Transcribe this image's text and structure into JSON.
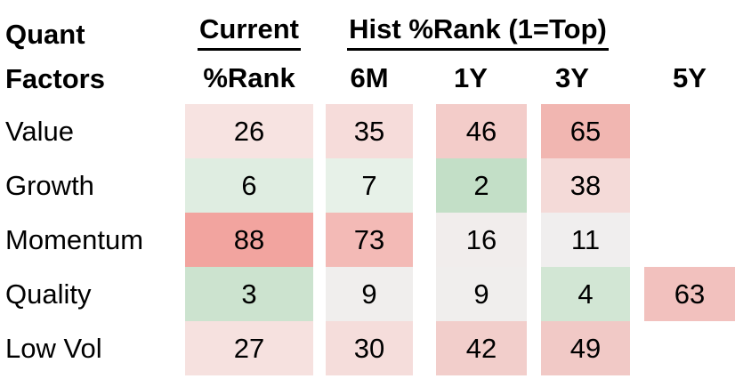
{
  "header": {
    "row_title_line1": "Quant",
    "row_title_line2": "Factors",
    "current_group_label": "Current",
    "hist_group_label": "Hist %Rank (1=Top)",
    "columns": [
      "%Rank",
      "6M",
      "1Y",
      "3Y",
      "5Y"
    ]
  },
  "rows": [
    {
      "label": "Value",
      "cells": [
        {
          "value": "26",
          "bg": "#F7E3E1"
        },
        {
          "value": "35",
          "bg": "#F6DCDA"
        },
        {
          "value": "46",
          "bg": "#F3CCC9"
        },
        {
          "value": "65",
          "bg": "#F1B6B1"
        },
        {
          "value": "",
          "bg": ""
        }
      ]
    },
    {
      "label": "Growth",
      "cells": [
        {
          "value": "6",
          "bg": "#DFEDE1"
        },
        {
          "value": "7",
          "bg": "#E7F1E8"
        },
        {
          "value": "2",
          "bg": "#C3DFC7"
        },
        {
          "value": "38",
          "bg": "#F4DAD8"
        },
        {
          "value": "",
          "bg": ""
        }
      ]
    },
    {
      "label": "Momentum",
      "cells": [
        {
          "value": "88",
          "bg": "#F2A49F"
        },
        {
          "value": "73",
          "bg": "#F3BAB6"
        },
        {
          "value": "16",
          "bg": "#F1EDEC"
        },
        {
          "value": "11",
          "bg": "#F0EEEE"
        },
        {
          "value": "",
          "bg": ""
        }
      ]
    },
    {
      "label": "Quality",
      "cells": [
        {
          "value": "3",
          "bg": "#CCE3CF"
        },
        {
          "value": "9",
          "bg": "#F0EEED"
        },
        {
          "value": "9",
          "bg": "#F0EEED"
        },
        {
          "value": "4",
          "bg": "#D2E6D4"
        },
        {
          "value": "63",
          "bg": "#F2C1BE"
        }
      ]
    },
    {
      "label": "Low Vol",
      "cells": [
        {
          "value": "27",
          "bg": "#F6E1DF"
        },
        {
          "value": "30",
          "bg": "#F5DDDB"
        },
        {
          "value": "42",
          "bg": "#F2CECB"
        },
        {
          "value": "49",
          "bg": "#F1C9C6"
        },
        {
          "value": "",
          "bg": ""
        }
      ]
    }
  ],
  "colors": {
    "good_green": "#C3DFC7",
    "bad_red": "#F2A49F",
    "neutral": "#F0EEEE",
    "text": "#000000",
    "background": "#FFFFFF"
  },
  "chart_data": {
    "type": "heatmap",
    "title": "Quant Factors %Rank (1=Top)",
    "column_groups": [
      {
        "label": "Current",
        "columns": [
          "%Rank"
        ]
      },
      {
        "label": "Hist %Rank (1=Top)",
        "columns": [
          "6M",
          "1Y",
          "3Y",
          "5Y"
        ]
      }
    ],
    "columns": [
      "%Rank",
      "6M",
      "1Y",
      "3Y",
      "5Y"
    ],
    "row_labels": [
      "Value",
      "Growth",
      "Momentum",
      "Quality",
      "Low Vol"
    ],
    "values": [
      [
        26,
        35,
        46,
        65,
        null
      ],
      [
        6,
        7,
        2,
        38,
        null
      ],
      [
        88,
        73,
        16,
        11,
        null
      ],
      [
        3,
        9,
        9,
        4,
        63
      ],
      [
        27,
        30,
        42,
        49,
        null
      ]
    ],
    "value_range": [
      1,
      100
    ],
    "color_scale": "low values green (top rank), high values red (bottom rank)"
  }
}
